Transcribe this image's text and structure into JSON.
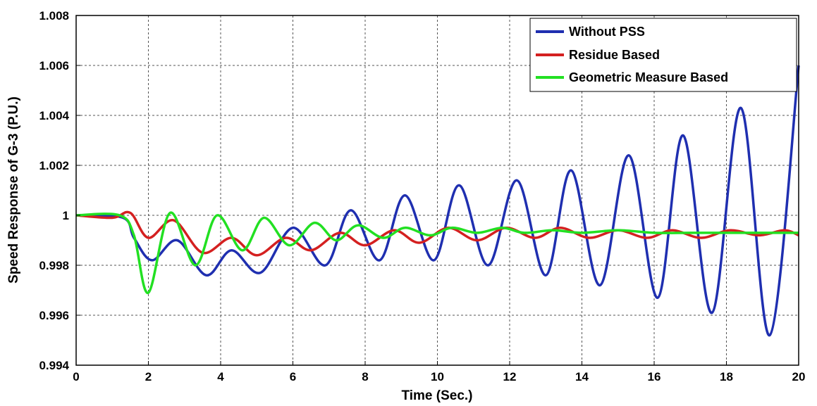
{
  "chart_data": {
    "type": "line",
    "title": "",
    "xlabel": "Time (Sec.)",
    "ylabel": "Speed Response of G-3 (P.U.)",
    "xlim": [
      0,
      20
    ],
    "ylim": [
      0.994,
      1.008
    ],
    "x_ticks": [
      "0",
      "2",
      "4",
      "6",
      "8",
      "10",
      "12",
      "14",
      "16",
      "18",
      "20"
    ],
    "y_ticks": [
      "0.994",
      "0.996",
      "0.998",
      "1",
      "1.002",
      "1.004",
      "1.006",
      "1.008"
    ],
    "grid": true,
    "legend_position": "top-right",
    "series": [
      {
        "name": "Without PSS",
        "color": "#1f2fb0",
        "points": [
          [
            0,
            1.0
          ],
          [
            1.3,
            0.9999
          ],
          [
            1.6,
            0.9991
          ],
          [
            2.1,
            0.9982
          ],
          [
            2.8,
            0.999
          ],
          [
            3.6,
            0.9976
          ],
          [
            4.3,
            0.9986
          ],
          [
            5.1,
            0.9977
          ],
          [
            6.0,
            0.9995
          ],
          [
            6.9,
            0.998
          ],
          [
            7.6,
            1.0002
          ],
          [
            8.4,
            0.9982
          ],
          [
            9.1,
            1.0008
          ],
          [
            9.9,
            0.9982
          ],
          [
            10.6,
            1.0012
          ],
          [
            11.4,
            0.998
          ],
          [
            12.2,
            1.0014
          ],
          [
            13.0,
            0.9976
          ],
          [
            13.7,
            1.0018
          ],
          [
            14.5,
            0.9972
          ],
          [
            15.3,
            1.0024
          ],
          [
            16.1,
            0.9967
          ],
          [
            16.8,
            1.0032
          ],
          [
            17.6,
            0.9961
          ],
          [
            18.4,
            1.0043
          ],
          [
            19.2,
            0.9952
          ],
          [
            20.0,
            1.006
          ]
        ]
      },
      {
        "name": "Residue Based",
        "color": "#d42020",
        "points": [
          [
            0,
            1.0
          ],
          [
            1.0,
            0.9999
          ],
          [
            1.5,
            1.0001
          ],
          [
            2.0,
            0.9991
          ],
          [
            2.7,
            0.9998
          ],
          [
            3.5,
            0.9985
          ],
          [
            4.3,
            0.9991
          ],
          [
            5.0,
            0.9984
          ],
          [
            5.8,
            0.9991
          ],
          [
            6.5,
            0.9986
          ],
          [
            7.3,
            0.9993
          ],
          [
            8.0,
            0.9988
          ],
          [
            8.8,
            0.9994
          ],
          [
            9.5,
            0.9989
          ],
          [
            10.3,
            0.9995
          ],
          [
            11.1,
            0.999
          ],
          [
            11.9,
            0.9995
          ],
          [
            12.7,
            0.9991
          ],
          [
            13.4,
            0.9995
          ],
          [
            14.2,
            0.9991
          ],
          [
            15.0,
            0.9994
          ],
          [
            15.8,
            0.9991
          ],
          [
            16.5,
            0.9994
          ],
          [
            17.3,
            0.9991
          ],
          [
            18.1,
            0.9994
          ],
          [
            18.9,
            0.9992
          ],
          [
            19.6,
            0.9994
          ],
          [
            20.0,
            0.9992
          ]
        ]
      },
      {
        "name": "Geometric Measure Based",
        "color": "#22e022",
        "points": [
          [
            0,
            1.0
          ],
          [
            1.2,
            1.0
          ],
          [
            1.6,
            0.9992
          ],
          [
            2.0,
            0.9969
          ],
          [
            2.6,
            1.0001
          ],
          [
            3.3,
            0.998
          ],
          [
            3.9,
            1.0
          ],
          [
            4.6,
            0.9986
          ],
          [
            5.2,
            0.9999
          ],
          [
            5.9,
            0.9988
          ],
          [
            6.6,
            0.9997
          ],
          [
            7.2,
            0.999
          ],
          [
            7.8,
            0.9996
          ],
          [
            8.5,
            0.9991
          ],
          [
            9.1,
            0.9995
          ],
          [
            9.8,
            0.9992
          ],
          [
            10.4,
            0.9995
          ],
          [
            11.1,
            0.9993
          ],
          [
            11.8,
            0.9995
          ],
          [
            12.4,
            0.9993
          ],
          [
            13.2,
            0.9994
          ],
          [
            14.0,
            0.9993
          ],
          [
            15.0,
            0.9994
          ],
          [
            16.0,
            0.9993
          ],
          [
            17.0,
            0.9993
          ],
          [
            18.0,
            0.9993
          ],
          [
            19.0,
            0.9993
          ],
          [
            20.0,
            0.9993
          ]
        ]
      }
    ]
  }
}
